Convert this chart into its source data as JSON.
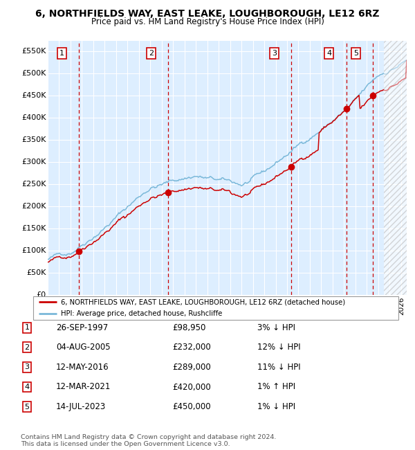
{
  "title_line1": "6, NORTHFIELDS WAY, EAST LEAKE, LOUGHBOROUGH, LE12 6RZ",
  "title_line2": "Price paid vs. HM Land Registry's House Price Index (HPI)",
  "xmin": 1995.0,
  "xmax": 2026.5,
  "ymin": 0,
  "ymax": 575000,
  "yticks": [
    0,
    50000,
    100000,
    150000,
    200000,
    250000,
    300000,
    350000,
    400000,
    450000,
    500000,
    550000
  ],
  "ytick_labels": [
    "£0",
    "£50K",
    "£100K",
    "£150K",
    "£200K",
    "£250K",
    "£300K",
    "£350K",
    "£400K",
    "£450K",
    "£500K",
    "£550K"
  ],
  "hpi_color": "#7ab8d9",
  "price_color": "#cc0000",
  "dot_color": "#cc0000",
  "vline_color": "#cc0000",
  "bg_color": "#ddeeff",
  "grid_color": "#ffffff",
  "sale_dates": [
    1997.73,
    2005.59,
    2016.36,
    2021.19,
    2023.54
  ],
  "sale_prices": [
    98950,
    232000,
    289000,
    420000,
    450000
  ],
  "sale_labels": [
    "1",
    "2",
    "3",
    "4",
    "5"
  ],
  "footnote_line1": "Contains HM Land Registry data © Crown copyright and database right 2024.",
  "footnote_line2": "This data is licensed under the Open Government Licence v3.0.",
  "legend_line1": "6, NORTHFIELDS WAY, EAST LEAKE, LOUGHBOROUGH, LE12 6RZ (detached house)",
  "legend_line2": "HPI: Average price, detached house, Rushcliffe",
  "table_rows": [
    [
      "1",
      "26-SEP-1997",
      "£98,950",
      "3% ↓ HPI"
    ],
    [
      "2",
      "04-AUG-2005",
      "£232,000",
      "12% ↓ HPI"
    ],
    [
      "3",
      "12-MAY-2016",
      "£289,000",
      "11% ↓ HPI"
    ],
    [
      "4",
      "12-MAR-2021",
      "£420,000",
      "1% ↑ HPI"
    ],
    [
      "5",
      "14-JUL-2023",
      "£450,000",
      "1% ↓ HPI"
    ]
  ]
}
